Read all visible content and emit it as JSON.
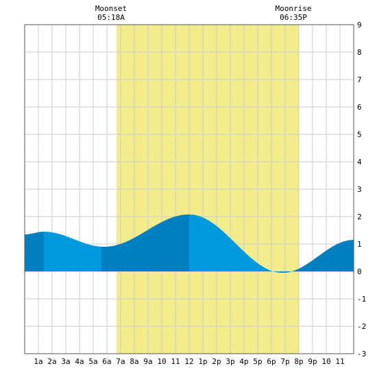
{
  "chart_data": {
    "type": "area",
    "title": "",
    "xlabel": "",
    "ylabel": "",
    "x_range": [
      0,
      24
    ],
    "ylim": [
      -3,
      9
    ],
    "grid": true,
    "x_tick_labels": [
      "1a",
      "2a",
      "3a",
      "4a",
      "5a",
      "6a",
      "7a",
      "8a",
      "9a",
      "10",
      "11",
      "12",
      "1p",
      "2p",
      "3p",
      "4p",
      "5p",
      "6p",
      "7p",
      "8p",
      "9p",
      "10",
      "11"
    ],
    "y_tick_labels": [
      "-3",
      "-2",
      "-1",
      "0",
      "1",
      "2",
      "3",
      "4",
      "5",
      "6",
      "7",
      "8",
      "9"
    ],
    "daylight": {
      "start": 6.7,
      "end": 20.0,
      "color": "#f2ec8c"
    },
    "moon_events": [
      {
        "label": "Moonset",
        "time": "05:18A",
        "hour": 6.7
      },
      {
        "label": "Moonrise",
        "time": "06:35P",
        "hour": 20.0
      }
    ],
    "tide_series": {
      "x": [
        0,
        1.4,
        5.8,
        12.0,
        18.8,
        24
      ],
      "y": [
        1.35,
        1.45,
        0.9,
        2.08,
        -0.05,
        1.15
      ]
    },
    "shading_segments": [
      {
        "from": 0,
        "to": 1.4,
        "shade": "dark"
      },
      {
        "from": 1.4,
        "to": 5.6,
        "shade": "light"
      },
      {
        "from": 5.6,
        "to": 12.0,
        "shade": "dark"
      },
      {
        "from": 12.0,
        "to": 19.0,
        "shade": "light"
      },
      {
        "from": 19.0,
        "to": 24,
        "shade": "dark"
      }
    ],
    "colors": {
      "light_fill": "#0099dd",
      "dark_fill": "#0080c0",
      "grid": "#cccccc",
      "border": "#555555"
    }
  }
}
